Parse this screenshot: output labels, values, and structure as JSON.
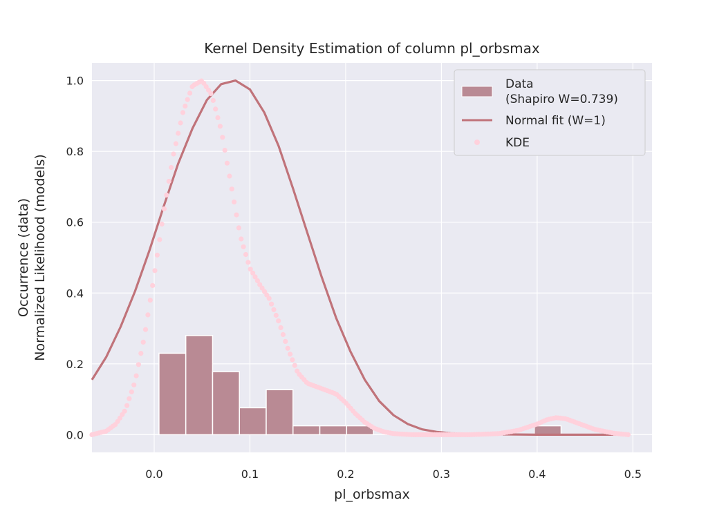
{
  "chart_data": {
    "type": "bar",
    "title": "Kernel Density Estimation of column pl_orbsmax",
    "xlabel": "pl_orbsmax",
    "ylabel_line1": "Occurrence (data)",
    "ylabel_line2": "Normalized Likelihood (models)",
    "xlim": [
      -0.065,
      0.52
    ],
    "ylim": [
      -0.05,
      1.05
    ],
    "x_ticks": [
      0.0,
      0.1,
      0.2,
      0.3,
      0.4,
      0.5
    ],
    "x_tick_labels": [
      "0.0",
      "0.1",
      "0.2",
      "0.3",
      "0.4",
      "0.5"
    ],
    "y_ticks": [
      0.0,
      0.2,
      0.4,
      0.6,
      0.8,
      1.0
    ],
    "y_tick_labels": [
      "0.0",
      "0.2",
      "0.4",
      "0.6",
      "0.8",
      "1.0"
    ],
    "grid": true,
    "legend_position": "top-right",
    "colors": {
      "background": "#eaeaf2",
      "grid": "#ffffff",
      "bars": "#b98a94",
      "bar_edge": "#ffffff",
      "normal_fit": "#c0737a",
      "kde": "#ffd1dc"
    },
    "histogram": {
      "name": "Data",
      "name_line2": "(Shapiro W=0.739)",
      "bin_edges": [
        0.005,
        0.033,
        0.061,
        0.089,
        0.117,
        0.145,
        0.173,
        0.201,
        0.229,
        0.257,
        0.285,
        0.313,
        0.341,
        0.369,
        0.397,
        0.425
      ],
      "values": [
        0.23,
        0.28,
        0.178,
        0.076,
        0.127,
        0.025,
        0.025,
        0.025,
        0.0,
        0.0,
        0.0,
        0.0,
        0.0,
        0.0,
        0.025
      ]
    },
    "normal_fit": {
      "name": "Normal fit (W=1)",
      "x": [
        -0.065,
        -0.05,
        -0.035,
        -0.02,
        -0.005,
        0.01,
        0.025,
        0.04,
        0.055,
        0.07,
        0.085,
        0.1,
        0.115,
        0.13,
        0.145,
        0.16,
        0.175,
        0.19,
        0.205,
        0.22,
        0.235,
        0.25,
        0.265,
        0.28,
        0.295,
        0.31,
        0.33,
        0.36,
        0.4,
        0.45,
        0.495
      ],
      "y": [
        0.155,
        0.22,
        0.305,
        0.405,
        0.52,
        0.645,
        0.765,
        0.865,
        0.945,
        0.99,
        1.0,
        0.975,
        0.91,
        0.815,
        0.695,
        0.57,
        0.445,
        0.33,
        0.235,
        0.155,
        0.095,
        0.055,
        0.03,
        0.015,
        0.008,
        0.004,
        0.002,
        0.001,
        0.0,
        0.0,
        0.0
      ]
    },
    "kde": {
      "name": "KDE",
      "x": [
        -0.065,
        -0.05,
        -0.04,
        -0.03,
        -0.02,
        -0.01,
        0.0,
        0.01,
        0.02,
        0.03,
        0.04,
        0.05,
        0.06,
        0.07,
        0.08,
        0.09,
        0.1,
        0.11,
        0.12,
        0.13,
        0.14,
        0.15,
        0.16,
        0.17,
        0.18,
        0.19,
        0.2,
        0.21,
        0.22,
        0.23,
        0.24,
        0.25,
        0.27,
        0.3,
        0.33,
        0.36,
        0.38,
        0.4,
        0.41,
        0.42,
        0.43,
        0.44,
        0.46,
        0.48,
        0.495
      ],
      "y": [
        0.0,
        0.01,
        0.03,
        0.07,
        0.15,
        0.28,
        0.45,
        0.63,
        0.79,
        0.91,
        0.985,
        1.0,
        0.96,
        0.86,
        0.71,
        0.56,
        0.47,
        0.425,
        0.385,
        0.32,
        0.24,
        0.175,
        0.145,
        0.135,
        0.125,
        0.115,
        0.09,
        0.06,
        0.035,
        0.018,
        0.008,
        0.003,
        0.0,
        0.0,
        0.0,
        0.003,
        0.012,
        0.03,
        0.042,
        0.048,
        0.045,
        0.035,
        0.015,
        0.004,
        0.0
      ]
    }
  }
}
